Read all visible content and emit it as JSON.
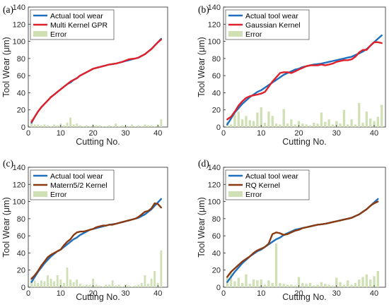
{
  "figure": {
    "xlabel": "Cutting No.",
    "ylabel": "Tool Wear (μm)",
    "xticks": [
      0,
      10,
      20,
      30,
      40
    ],
    "yticks": [
      0,
      20,
      40,
      60,
      80,
      100,
      120,
      140
    ],
    "xlim": [
      0,
      43
    ],
    "ylim": [
      0,
      140
    ]
  },
  "colors": {
    "actual": "#1f6fbf",
    "error": "#cfe0b4",
    "panel_a_model": "#e0202a",
    "panel_b_model": "#e0202a",
    "panel_c_model": "#8a3a10",
    "panel_d_model": "#8a3a10"
  },
  "chart_data": [
    {
      "type": "line",
      "panel_label": "(a)",
      "legend_placement": "top-left",
      "grid": false,
      "xlabel": "Cutting No.",
      "ylabel": "Tool Wear (μm)",
      "xlim": [
        0,
        43
      ],
      "ylim": [
        0,
        140
      ],
      "x": [
        1,
        2,
        3,
        4,
        5,
        6,
        7,
        8,
        9,
        10,
        11,
        12,
        13,
        14,
        15,
        16,
        17,
        18,
        19,
        20,
        21,
        22,
        23,
        24,
        25,
        26,
        27,
        28,
        29,
        30,
        31,
        32,
        33,
        34,
        35,
        36,
        37,
        38,
        39,
        40,
        41
      ],
      "series": [
        {
          "name": "Actual tool wear",
          "kind": "line",
          "values": [
            5,
            12,
            18,
            23,
            27,
            31,
            35,
            38,
            41,
            44,
            47,
            50,
            52,
            55,
            57,
            60,
            62,
            64,
            66,
            68,
            69,
            70,
            71,
            72,
            73,
            73.5,
            74,
            75,
            76,
            77,
            78,
            79,
            80,
            81,
            83,
            85,
            88,
            91,
            95,
            99,
            103
          ]
        },
        {
          "name": "Multi Kernel GPR",
          "kind": "line",
          "values": [
            6,
            12,
            18,
            23,
            27,
            31,
            35,
            38,
            41,
            44,
            47,
            50,
            53,
            55,
            57,
            60,
            62,
            64,
            66,
            68,
            69,
            70,
            71,
            72,
            73,
            73.5,
            74,
            75,
            76,
            77.5,
            79,
            79.5,
            80,
            81,
            83,
            85,
            88,
            91,
            95,
            99,
            102
          ]
        },
        {
          "name": "Error",
          "kind": "bar",
          "values": [
            9,
            3,
            3,
            2,
            3,
            2,
            1,
            3,
            2,
            4,
            2,
            5,
            11,
            3,
            4,
            2,
            1,
            2,
            1,
            3,
            2,
            2,
            1,
            1,
            2,
            1,
            4,
            1,
            2,
            2,
            1,
            3,
            1,
            2,
            1,
            3,
            2,
            2,
            1,
            3,
            9
          ]
        }
      ]
    },
    {
      "type": "line",
      "panel_label": "(b)",
      "legend_placement": "top-left",
      "grid": false,
      "xlabel": "Cutting No.",
      "ylabel": "Tool Wear (μm)",
      "xlim": [
        0,
        43
      ],
      "ylim": [
        0,
        140
      ],
      "x": [
        1,
        2,
        3,
        4,
        5,
        6,
        7,
        8,
        9,
        10,
        11,
        12,
        13,
        14,
        15,
        16,
        17,
        18,
        19,
        20,
        21,
        22,
        23,
        24,
        25,
        26,
        27,
        28,
        29,
        30,
        31,
        32,
        33,
        34,
        35,
        36,
        37,
        38,
        39,
        40,
        41,
        42
      ],
      "series": [
        {
          "name": "Actual tool wear",
          "kind": "line",
          "values": [
            3,
            10,
            17,
            22,
            27,
            31,
            35,
            38,
            41,
            43,
            46,
            49,
            52,
            55,
            58,
            61,
            63,
            65,
            67,
            68,
            70,
            71,
            72,
            73,
            73.5,
            74,
            75,
            76,
            77,
            78,
            79,
            80,
            81,
            82,
            84,
            86,
            88,
            91,
            95,
            99,
            103,
            107
          ]
        },
        {
          "name": "Gaussian Kernel",
          "kind": "line",
          "values": [
            9,
            12,
            18,
            25,
            30,
            34,
            36,
            37,
            38,
            39,
            41,
            47,
            53,
            58,
            63,
            64,
            64,
            63,
            65,
            67,
            69,
            71,
            72,
            72,
            72,
            73,
            72,
            73,
            74,
            76,
            77,
            78,
            78,
            79,
            82,
            87,
            90,
            90,
            95,
            99,
            99,
            98
          ]
        },
        {
          "name": "Error",
          "kind": "bar",
          "values": [
            6,
            3,
            15,
            18,
            9,
            13,
            8,
            7,
            17,
            23,
            5,
            18,
            13,
            4,
            3,
            21,
            4,
            9,
            3,
            7,
            4,
            3,
            2,
            5,
            4,
            17,
            6,
            9,
            3,
            7,
            4,
            20,
            3,
            9,
            3,
            28,
            5,
            18,
            10,
            7,
            12,
            26
          ]
        }
      ]
    },
    {
      "type": "line",
      "panel_label": "(c)",
      "legend_placement": "top-left",
      "grid": false,
      "xlabel": "Cutting No.",
      "ylabel": "Tool Wear (μm)",
      "xlim": [
        0,
        43
      ],
      "ylim": [
        0,
        140
      ],
      "x": [
        1,
        2,
        3,
        4,
        5,
        6,
        7,
        8,
        9,
        10,
        11,
        12,
        13,
        14,
        15,
        16,
        17,
        18,
        19,
        20,
        21,
        22,
        23,
        24,
        25,
        26,
        27,
        28,
        29,
        30,
        31,
        32,
        33,
        34,
        35,
        36,
        37,
        38,
        39,
        40,
        41
      ],
      "series": [
        {
          "name": "Actual tool wear",
          "kind": "line",
          "values": [
            6,
            12,
            18,
            23,
            28,
            32,
            36,
            39,
            42,
            44,
            47,
            50,
            53,
            56,
            58,
            61,
            63,
            65,
            67,
            68,
            69,
            70,
            71,
            72,
            73,
            73.5,
            74,
            75,
            76,
            77,
            78,
            79,
            80,
            81,
            83,
            85,
            88,
            91,
            95,
            99,
            103
          ]
        },
        {
          "name": "Matern5/2 Kernel",
          "kind": "line",
          "values": [
            10,
            14,
            19,
            25,
            30,
            35,
            38,
            40,
            42,
            44,
            49,
            53,
            56,
            61,
            64,
            65,
            65,
            66,
            67,
            68,
            70,
            71,
            72,
            72,
            73,
            73,
            74,
            75,
            76,
            77,
            78,
            79,
            80,
            82,
            85,
            88,
            89,
            92,
            98,
            97,
            93
          ]
        },
        {
          "name": "Error",
          "kind": "bar",
          "values": [
            12,
            8,
            5,
            8,
            7,
            14,
            10,
            7,
            14,
            9,
            5,
            23,
            9,
            6,
            9,
            4,
            2,
            3,
            3,
            10,
            3,
            2,
            1,
            3,
            3,
            8,
            2,
            3,
            1,
            3,
            2,
            1,
            2,
            3,
            5,
            14,
            4,
            10,
            19,
            5,
            43
          ]
        }
      ]
    },
    {
      "type": "line",
      "panel_label": "(d)",
      "legend_placement": "top-left",
      "grid": false,
      "xlabel": "Cutting No.",
      "ylabel": "Tool Wear (μm)",
      "xlim": [
        0,
        43
      ],
      "ylim": [
        0,
        140
      ],
      "x": [
        1,
        2,
        3,
        4,
        5,
        6,
        7,
        8,
        9,
        10,
        11,
        12,
        13,
        14,
        15,
        16,
        17,
        18,
        19,
        20,
        21,
        22,
        23,
        24,
        25,
        26,
        27,
        28,
        29,
        30,
        31,
        32,
        33,
        34,
        35,
        36,
        37,
        38,
        39,
        40,
        41
      ],
      "series": [
        {
          "name": "Actual tool wear",
          "kind": "line",
          "values": [
            6,
            12,
            18,
            23,
            28,
            32,
            36,
            39,
            42,
            44,
            47,
            50,
            53,
            56,
            58,
            61,
            63,
            65,
            67,
            68,
            69,
            70,
            71,
            72,
            73,
            73.5,
            74,
            75,
            76,
            77,
            78,
            79,
            80,
            81,
            83,
            85,
            88,
            91,
            95,
            99,
            103
          ]
        },
        {
          "name": "RQ Kernel",
          "kind": "line",
          "values": [
            12,
            18,
            22,
            26,
            30,
            33,
            36,
            40,
            43,
            45,
            47,
            51,
            62,
            64,
            63,
            61,
            62,
            64,
            66,
            67,
            69,
            70,
            71,
            72,
            73,
            73.5,
            74,
            75,
            76,
            77,
            78,
            79,
            80,
            81,
            83,
            85,
            88,
            91,
            95,
            98,
            100
          ]
        },
        {
          "name": "Error",
          "kind": "bar",
          "values": [
            12,
            18,
            7,
            11,
            5,
            15,
            4,
            9,
            8,
            9,
            3,
            8,
            5,
            51,
            5,
            4,
            3,
            3,
            2,
            12,
            5,
            4,
            5,
            2,
            3,
            6,
            4,
            3,
            2,
            11,
            6,
            3,
            8,
            3,
            5,
            9,
            12,
            15,
            9,
            13,
            19
          ]
        }
      ]
    }
  ]
}
